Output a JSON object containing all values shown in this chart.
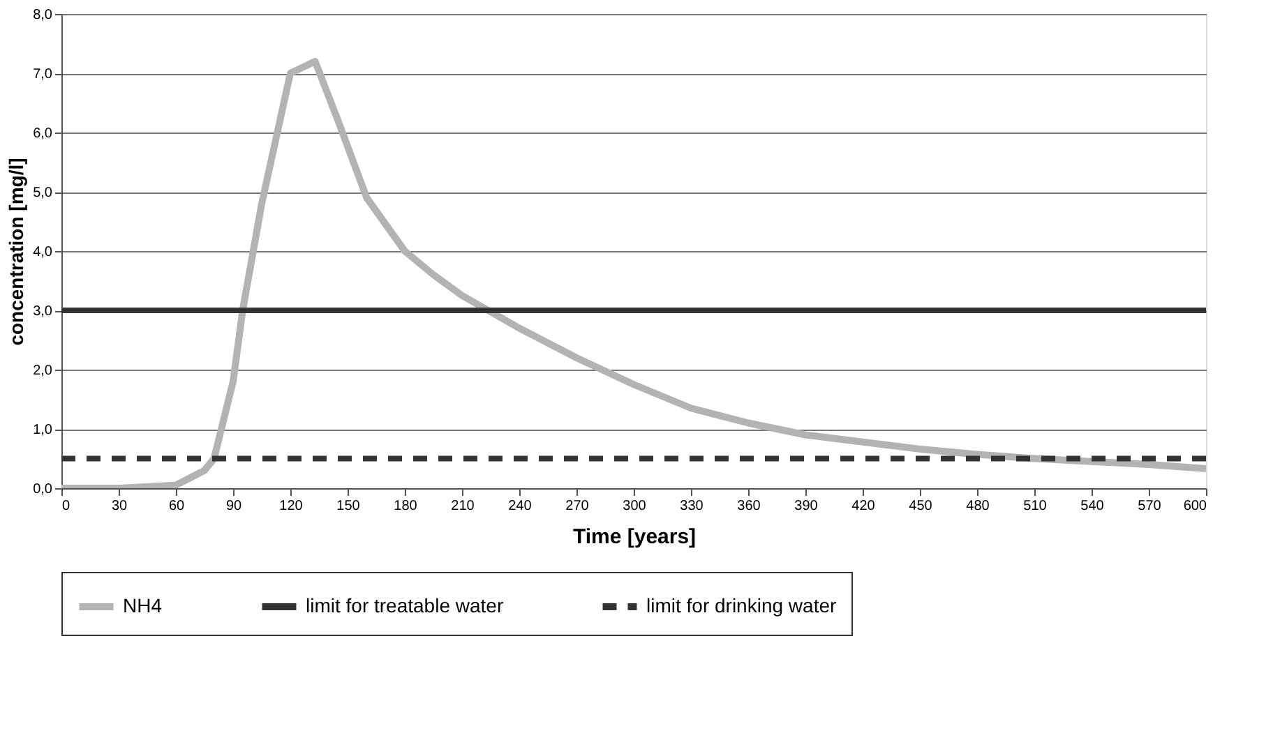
{
  "chart_data": {
    "type": "line",
    "xlabel": "Time [years]",
    "ylabel": "concentration [mg/l]",
    "xlim": [
      0,
      600
    ],
    "xticks": [
      0,
      30,
      60,
      90,
      120,
      150,
      180,
      210,
      240,
      270,
      300,
      330,
      360,
      390,
      420,
      450,
      480,
      510,
      540,
      570,
      600
    ],
    "ylim": [
      0,
      8
    ],
    "yticks": [
      {
        "value": 0,
        "label": "0,0"
      },
      {
        "value": 1,
        "label": "1,0"
      },
      {
        "value": 2,
        "label": "2,0"
      },
      {
        "value": 3,
        "label": "3,0"
      },
      {
        "value": 4,
        "label": "4,0"
      },
      {
        "value": 5,
        "label": "5,0"
      },
      {
        "value": 6,
        "label": "6,0"
      },
      {
        "value": 7,
        "label": "7,0"
      },
      {
        "value": 8,
        "label": "8,0"
      }
    ],
    "grid": "y",
    "legend": "bottom",
    "marker": "none",
    "line_style": "solid",
    "series": [
      {
        "name": "NH4",
        "color": "#b3b3b3",
        "x": [
          0,
          30,
          60,
          75,
          80,
          90,
          95,
          105,
          120,
          133,
          145,
          160,
          180,
          195,
          210,
          240,
          270,
          300,
          330,
          360,
          390,
          420,
          450,
          480,
          510,
          540,
          570,
          600
        ],
        "values": [
          0,
          0,
          0.05,
          0.3,
          0.5,
          1.8,
          3.0,
          4.8,
          7.0,
          7.2,
          6.2,
          4.9,
          4.0,
          3.6,
          3.25,
          2.7,
          2.2,
          1.75,
          1.35,
          1.1,
          0.9,
          0.78,
          0.66,
          0.57,
          0.5,
          0.45,
          0.4,
          0.33
        ]
      }
    ],
    "ref_lines": [
      {
        "axis": "y",
        "value": 3.0,
        "label": "limit for treatable water",
        "color": "#333333",
        "line_style": "solid"
      },
      {
        "axis": "y",
        "value": 0.5,
        "label": "limit for drinking water",
        "color": "#333333",
        "line_style": "dashed"
      }
    ]
  }
}
